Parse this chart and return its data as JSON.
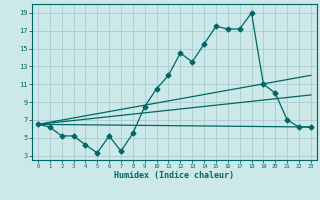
{
  "xlabel": "Humidex (Indice chaleur)",
  "bg_color": "#cce8e8",
  "grid_color": "#aacccc",
  "line_color": "#006666",
  "xlim": [
    -0.5,
    23.5
  ],
  "ylim": [
    2.5,
    20.0
  ],
  "xticks": [
    0,
    1,
    2,
    3,
    4,
    5,
    6,
    7,
    8,
    9,
    10,
    11,
    12,
    13,
    14,
    15,
    16,
    17,
    18,
    19,
    20,
    21,
    22,
    23
  ],
  "yticks": [
    3,
    5,
    7,
    9,
    11,
    13,
    15,
    17,
    19
  ],
  "series1_x": [
    0,
    1,
    2,
    3,
    4,
    5,
    6,
    7,
    8,
    9,
    10,
    11,
    12,
    13,
    14,
    15,
    16,
    17,
    18,
    19,
    20,
    21,
    22,
    23
  ],
  "series1_y": [
    6.5,
    6.2,
    5.2,
    5.2,
    4.2,
    3.3,
    5.2,
    3.5,
    5.5,
    8.5,
    10.5,
    12.0,
    14.5,
    13.5,
    15.5,
    17.5,
    17.2,
    17.2,
    19.0,
    11.0,
    10.0,
    7.0,
    6.2,
    6.2
  ],
  "series2_x": [
    0,
    23
  ],
  "series2_y": [
    6.5,
    12.0
  ],
  "series3_x": [
    0,
    23
  ],
  "series3_y": [
    6.5,
    9.8
  ],
  "series4_x": [
    0,
    23
  ],
  "series4_y": [
    6.5,
    6.2
  ],
  "marker_style": "D",
  "marker_size": 2.5,
  "linewidth": 0.9
}
